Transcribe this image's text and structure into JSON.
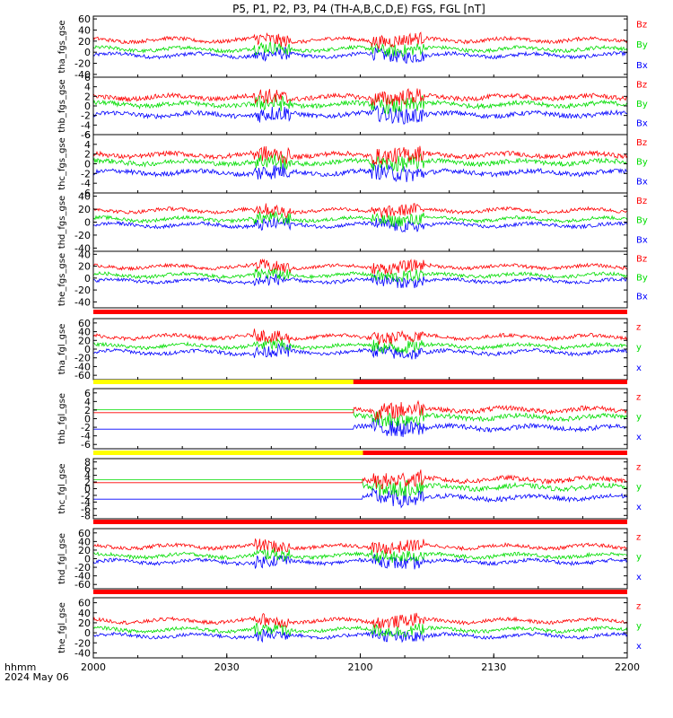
{
  "title": "P5, P1, P2, P3, P4 (TH-A,B,C,D,E) FGS, FGL [nT]",
  "footer": {
    "time_format_label": "hhmm",
    "date_label": "2024 May 06"
  },
  "colors": {
    "x": "#0000ff",
    "y": "#00dd00",
    "z": "#ff0000",
    "bar_red": "#ff0000",
    "bar_yellow": "#ffff00",
    "axes": "#000000"
  },
  "chart_data": {
    "type": "line",
    "x_axis": {
      "tick_labels": [
        "2000",
        "2030",
        "2100",
        "2130",
        "2200"
      ],
      "range": [
        "20:00",
        "22:00"
      ]
    },
    "panels": [
      {
        "ylabel": "tha_fgs_gse",
        "yticks": [
          "60",
          "40",
          "20",
          "0",
          "-20",
          "-40"
        ],
        "ylim": [
          -45,
          65
        ],
        "legend": [
          "Bz",
          "By",
          "Bx"
        ],
        "status_bar": null
      },
      {
        "ylabel": "thb_fgs_gse",
        "yticks": [
          "6",
          "4",
          "2",
          "0",
          "-2",
          "-4",
          "-6"
        ],
        "ylim": [
          -6,
          6
        ],
        "legend": [
          "Bz",
          "By",
          "Bx"
        ],
        "status_bar": null
      },
      {
        "ylabel": "thc_fgs_gse",
        "yticks": [
          "6",
          "4",
          "2",
          "0",
          "-2",
          "-4",
          "-6"
        ],
        "ylim": [
          -6,
          6
        ],
        "legend": [
          "Bz",
          "By",
          "Bx"
        ],
        "status_bar": null
      },
      {
        "ylabel": "thd_fgs_gse",
        "yticks": [
          "40",
          "20",
          "0",
          "-20",
          "-40"
        ],
        "ylim": [
          -45,
          45
        ],
        "legend": [
          "Bz",
          "By",
          "Bx"
        ],
        "status_bar": null
      },
      {
        "ylabel": "the_fgs_gse",
        "yticks": [
          "40",
          "20",
          "0",
          "-20",
          "-40"
        ],
        "ylim": [
          -50,
          45
        ],
        "legend": [
          "Bz",
          "By",
          "Bx"
        ],
        "status_bar": null
      },
      {
        "ylabel": "tha_fgl_gse",
        "yticks": [
          "60",
          "40",
          "20",
          "0",
          "-20",
          "-40",
          "-60"
        ],
        "ylim": [
          -70,
          70
        ],
        "legend": [
          "z",
          "y",
          "x"
        ],
        "status_bar": [
          {
            "from": 0,
            "to": 1,
            "color": "red"
          }
        ]
      },
      {
        "ylabel": "thb_fgl_gse",
        "yticks": [
          "6",
          "4",
          "2",
          "0",
          "-2",
          "-4",
          "-6"
        ],
        "ylim": [
          -7,
          7
        ],
        "legend": [
          "z",
          "y",
          "x"
        ],
        "status_bar": [
          {
            "from": 0,
            "to": 0.487,
            "color": "yellow"
          },
          {
            "from": 0.487,
            "to": 1,
            "color": "red"
          }
        ]
      },
      {
        "ylabel": "thc_fgl_gse",
        "yticks": [
          "8",
          "6",
          "4",
          "2",
          "0",
          "-2",
          "-4",
          "-6",
          "-8"
        ],
        "ylim": [
          -9,
          9
        ],
        "legend": [
          "z",
          "y",
          "x"
        ],
        "status_bar": [
          {
            "from": 0,
            "to": 0.505,
            "color": "yellow"
          },
          {
            "from": 0.505,
            "to": 1,
            "color": "red"
          }
        ]
      },
      {
        "ylabel": "thd_fgl_gse",
        "yticks": [
          "60",
          "40",
          "20",
          "0",
          "-20",
          "-40",
          "-60"
        ],
        "ylim": [
          -70,
          70
        ],
        "legend": [
          "z",
          "y",
          "x"
        ],
        "status_bar": [
          {
            "from": 0,
            "to": 1,
            "color": "red"
          }
        ]
      },
      {
        "ylabel": "the_fgl_gse",
        "yticks": [
          "60",
          "40",
          "20",
          "0",
          "-20",
          "-40"
        ],
        "ylim": [
          -50,
          70
        ],
        "legend": [
          "z",
          "y",
          "x"
        ],
        "status_bar": [
          {
            "from": 0,
            "to": 1,
            "color": "red"
          }
        ]
      }
    ]
  }
}
